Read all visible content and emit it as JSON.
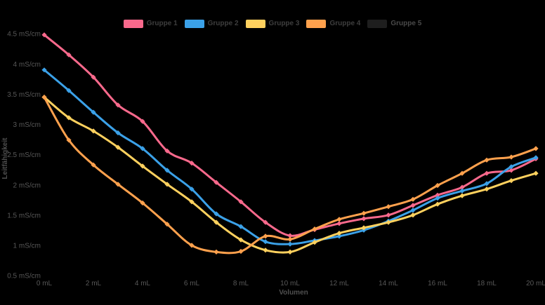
{
  "chart_data": {
    "type": "line",
    "title": "",
    "xlabel": "Volumen",
    "ylabel": "Leitfähigkeit",
    "background": "#000000",
    "grid": false,
    "legend_position": "top",
    "xlim": [
      0,
      20
    ],
    "ylim": [
      0.5,
      4.5
    ],
    "tick_text_color": "#585858",
    "axis_title_color": "#4f4f4f",
    "legend_text_color": "#3e3e3e",
    "disabled_legend_text_color": "#4a4a4a",
    "x": [
      0,
      1,
      2,
      3,
      4,
      5,
      6,
      7,
      8,
      9,
      10,
      11,
      12,
      13,
      14,
      15,
      16,
      17,
      18,
      19,
      20
    ],
    "x_ticks": [
      {
        "v": 0,
        "label": "0 mL"
      },
      {
        "v": 2,
        "label": "2 mL"
      },
      {
        "v": 4,
        "label": "4 mL"
      },
      {
        "v": 6,
        "label": "6 mL"
      },
      {
        "v": 8,
        "label": "8 mL"
      },
      {
        "v": 10,
        "label": "10 mL"
      },
      {
        "v": 12,
        "label": "12 mL"
      },
      {
        "v": 14,
        "label": "14 mL"
      },
      {
        "v": 16,
        "label": "16 mL"
      },
      {
        "v": 18,
        "label": "18 mL"
      },
      {
        "v": 20,
        "label": "20 mL"
      }
    ],
    "y_ticks": [
      {
        "v": 0.5,
        "label": "0.5 mS/cm"
      },
      {
        "v": 1,
        "label": "1 mS/cm"
      },
      {
        "v": 1.5,
        "label": "1.5 mS/cm"
      },
      {
        "v": 2,
        "label": "2 mS/cm"
      },
      {
        "v": 2.5,
        "label": "2.5 mS/cm"
      },
      {
        "v": 3,
        "label": "3 mS/cm"
      },
      {
        "v": 3.5,
        "label": "3.5 mS/cm"
      },
      {
        "v": 4,
        "label": "4 mS/cm"
      },
      {
        "v": 4.5,
        "label": "4.5 mS/cm"
      }
    ],
    "series": [
      {
        "name": "Gruppe 1",
        "color": "#F9698C",
        "visible": true,
        "values": [
          4.48,
          4.15,
          3.78,
          3.32,
          3.05,
          2.56,
          2.36,
          2.04,
          1.72,
          1.38,
          1.16,
          1.26,
          1.36,
          1.44,
          1.5,
          1.66,
          1.83,
          1.96,
          2.19,
          2.24,
          2.43
        ]
      },
      {
        "name": "Gruppe 2",
        "color": "#3BA1E8",
        "visible": true,
        "values": [
          3.9,
          3.56,
          3.2,
          2.86,
          2.6,
          2.24,
          1.93,
          1.52,
          1.31,
          1.06,
          1.02,
          1.08,
          1.15,
          1.25,
          1.4,
          1.58,
          1.78,
          1.9,
          2.02,
          2.3,
          2.45
        ]
      },
      {
        "name": "Gruppe 3",
        "color": "#FFD15E",
        "visible": true,
        "values": [
          3.45,
          3.11,
          2.89,
          2.62,
          2.31,
          2.01,
          1.72,
          1.38,
          1.09,
          0.92,
          0.89,
          1.05,
          1.2,
          1.29,
          1.38,
          1.5,
          1.68,
          1.82,
          1.93,
          2.07,
          2.19
        ]
      },
      {
        "name": "Gruppe 4",
        "color": "#FFA14D",
        "visible": true,
        "values": [
          3.45,
          2.74,
          2.33,
          2.01,
          1.7,
          1.35,
          1.0,
          0.89,
          0.9,
          1.15,
          1.1,
          1.27,
          1.43,
          1.53,
          1.64,
          1.76,
          1.99,
          2.19,
          2.41,
          2.46,
          2.6
        ]
      },
      {
        "name": "Gruppe 5",
        "color": "#1E1E1E",
        "visible": false,
        "values": []
      }
    ]
  }
}
